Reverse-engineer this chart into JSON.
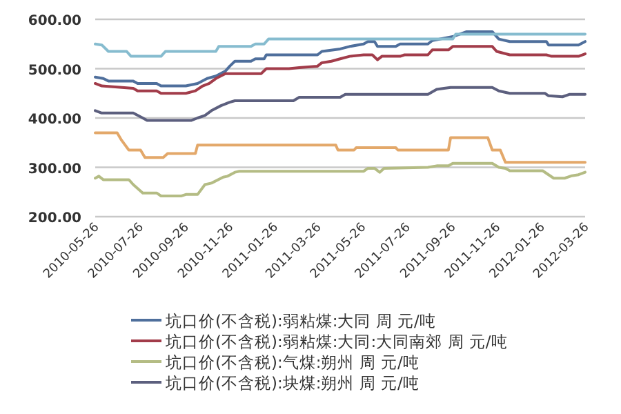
{
  "chart_data": {
    "type": "line",
    "grid": "y",
    "legend": "bottom",
    "xlim": [
      "2010-05-26",
      "2012-03-26"
    ],
    "xticks": [
      "2010-05-26",
      "2010-07-26",
      "2010-09-26",
      "2010-11-26",
      "2011-01-26",
      "2011-03-26",
      "2011-05-26",
      "2011-07-26",
      "2011-09-26",
      "2011-11-26",
      "2012-01-26",
      "2012-03-26"
    ],
    "ylim": [
      200,
      600
    ],
    "yticks": [
      {
        "value": 200,
        "label": "200.00"
      },
      {
        "value": 300,
        "label": "300.00"
      },
      {
        "value": 400,
        "label": "400.00"
      },
      {
        "value": 500,
        "label": "500.00"
      },
      {
        "value": 600,
        "label": "600.00"
      }
    ],
    "series": [
      {
        "name": "坑口价(不含税):弱粘煤:大同 周 元/吨",
        "color": "#4f6f9c",
        "x": [
          "2010-05-26",
          "2010-06-06",
          "2010-06-13",
          "2010-07-17",
          "2010-07-23",
          "2010-08-18",
          "2010-08-24",
          "2010-09-27",
          "2010-10-13",
          "2010-10-26",
          "2010-11-07",
          "2010-11-20",
          "2010-11-26",
          "2010-12-03",
          "2010-12-25",
          "2010-12-31",
          "2011-01-12",
          "2011-01-15",
          "2011-03-26",
          "2011-04-01",
          "2011-04-26",
          "2011-05-09",
          "2011-05-28",
          "2011-06-03",
          "2011-06-12",
          "2011-06-16",
          "2011-07-11",
          "2011-07-17",
          "2011-08-24",
          "2011-08-30",
          "2011-09-27",
          "2011-10-16",
          "2011-11-20",
          "2011-11-29",
          "2011-12-14",
          "2012-02-02",
          "2012-02-05",
          "2012-03-17",
          "2012-03-26"
        ],
        "values": [
          483,
          480,
          475,
          475,
          470,
          470,
          465,
          465,
          470,
          480,
          485,
          495,
          505,
          515,
          515,
          520,
          520,
          528,
          528,
          535,
          540,
          545,
          550,
          555,
          555,
          545,
          545,
          550,
          550,
          557,
          565,
          575,
          575,
          560,
          555,
          555,
          548,
          548,
          555
        ]
      },
      {
        "name": "坑口价(不含税):弱粘煤:大同:大同南郊 周 元/吨",
        "color": "#a23c4a",
        "x": [
          "2010-05-26",
          "2010-06-04",
          "2010-07-17",
          "2010-07-23",
          "2010-08-18",
          "2010-08-24",
          "2010-09-27",
          "2010-10-10",
          "2010-10-20",
          "2010-10-29",
          "2010-11-07",
          "2010-11-20",
          "2011-01-08",
          "2011-01-15",
          "2011-02-15",
          "2011-03-01",
          "2011-03-26",
          "2011-04-01",
          "2011-04-14",
          "2011-04-26",
          "2011-05-09",
          "2011-05-28",
          "2011-06-09",
          "2011-06-16",
          "2011-06-22",
          "2011-07-17",
          "2011-07-23",
          "2011-08-24",
          "2011-08-30",
          "2011-09-21",
          "2011-09-27",
          "2011-11-20",
          "2011-11-26",
          "2011-12-14",
          "2012-02-02",
          "2012-02-09",
          "2012-03-17",
          "2012-03-26"
        ],
        "values": [
          470,
          465,
          460,
          455,
          455,
          450,
          450,
          455,
          465,
          470,
          480,
          490,
          490,
          500,
          500,
          502,
          505,
          512,
          515,
          520,
          525,
          528,
          528,
          518,
          525,
          525,
          528,
          528,
          538,
          538,
          545,
          545,
          535,
          528,
          528,
          525,
          525,
          530
        ]
      },
      {
        "name": "坑口价(不含税):气煤:朔州 周 元/吨",
        "color": "#b4bc84",
        "x": [
          "2010-05-26",
          "2010-05-31",
          "2010-06-06",
          "2010-07-11",
          "2010-07-17",
          "2010-07-30",
          "2010-08-18",
          "2010-08-24",
          "2010-09-21",
          "2010-09-27",
          "2010-10-13",
          "2010-10-23",
          "2010-11-01",
          "2010-11-17",
          "2010-11-23",
          "2010-12-03",
          "2010-12-09",
          "2011-05-28",
          "2011-06-03",
          "2011-06-12",
          "2011-06-19",
          "2011-06-25",
          "2011-08-24",
          "2011-09-05",
          "2011-09-21",
          "2011-09-27",
          "2011-11-20",
          "2011-11-29",
          "2011-12-08",
          "2011-12-14",
          "2012-01-28",
          "2012-02-05",
          "2012-02-12",
          "2012-02-27",
          "2012-03-08",
          "2012-03-17",
          "2012-03-26"
        ],
        "values": [
          278,
          282,
          275,
          275,
          265,
          248,
          248,
          242,
          242,
          245,
          245,
          265,
          268,
          280,
          282,
          290,
          292,
          292,
          298,
          298,
          290,
          298,
          300,
          303,
          303,
          308,
          308,
          300,
          298,
          293,
          293,
          285,
          278,
          278,
          283,
          285,
          290
        ]
      },
      {
        "name": "坑口价(不含税):块煤:朔州 周 元/吨",
        "color": "#5c5f7e",
        "x": [
          "2010-05-26",
          "2010-06-04",
          "2010-07-17",
          "2010-07-30",
          "2010-08-05",
          "2010-10-04",
          "2010-10-13",
          "2010-10-23",
          "2010-11-01",
          "2010-11-14",
          "2010-11-26",
          "2010-12-03",
          "2011-02-21",
          "2011-03-01",
          "2011-04-26",
          "2011-05-03",
          "2011-08-24",
          "2011-09-05",
          "2011-09-15",
          "2011-09-24",
          "2011-11-20",
          "2011-11-29",
          "2011-12-14",
          "2012-01-31",
          "2012-02-05",
          "2012-02-24",
          "2012-03-05",
          "2012-03-26"
        ],
        "values": [
          415,
          410,
          410,
          400,
          395,
          395,
          400,
          405,
          415,
          425,
          432,
          435,
          435,
          442,
          442,
          448,
          448,
          458,
          460,
          462,
          462,
          455,
          450,
          450,
          445,
          443,
          448,
          448
        ]
      },
      {
        "color": "#86bccf",
        "x": [
          "2010-05-26",
          "2010-06-04",
          "2010-06-13",
          "2010-07-08",
          "2010-07-14",
          "2010-08-24",
          "2010-08-30",
          "2010-11-07",
          "2010-11-11",
          "2010-12-25",
          "2010-12-31",
          "2011-01-12",
          "2011-01-18",
          "2011-09-27",
          "2011-10-01",
          "2012-03-26"
        ],
        "values": [
          550,
          548,
          535,
          535,
          525,
          525,
          535,
          535,
          545,
          545,
          550,
          550,
          560,
          560,
          570,
          570
        ]
      },
      {
        "color": "#e3a86a",
        "x": [
          "2010-05-26",
          "2010-06-25",
          "2010-07-01",
          "2010-07-11",
          "2010-07-27",
          "2010-08-02",
          "2010-08-27",
          "2010-09-02",
          "2010-10-10",
          "2010-10-13",
          "2011-04-20",
          "2011-04-23",
          "2011-05-15",
          "2011-05-18",
          "2011-07-11",
          "2011-07-14",
          "2011-09-21",
          "2011-09-24",
          "2011-11-14",
          "2011-11-20",
          "2011-12-01",
          "2011-12-08",
          "2012-03-26"
        ],
        "values": [
          370,
          370,
          355,
          335,
          335,
          320,
          320,
          328,
          328,
          345,
          345,
          335,
          335,
          340,
          340,
          335,
          335,
          360,
          360,
          335,
          335,
          310,
          310
        ]
      }
    ]
  }
}
